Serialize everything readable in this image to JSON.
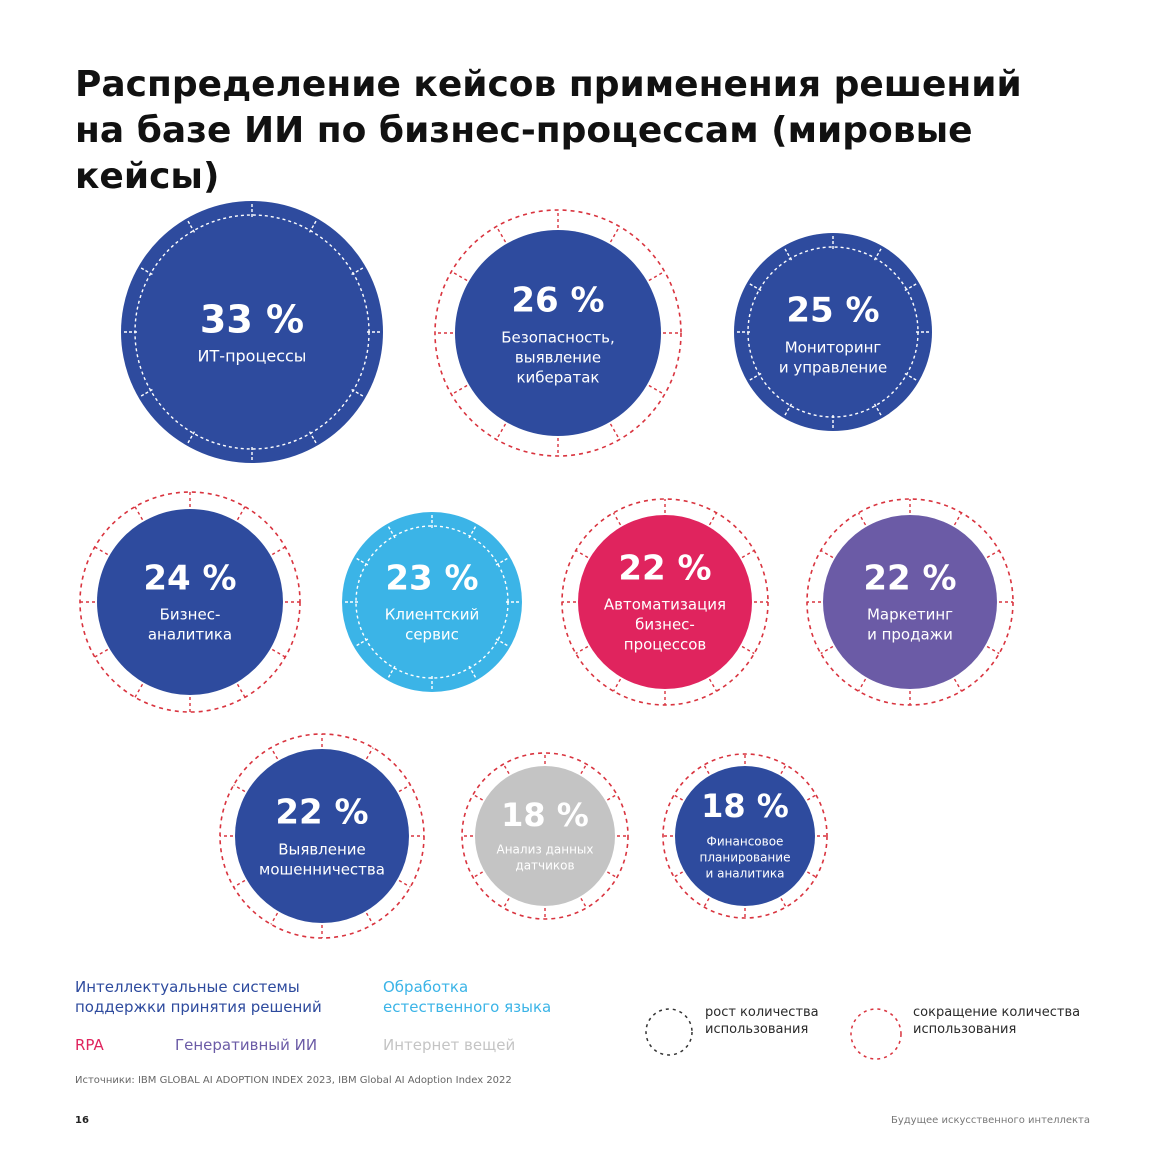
{
  "title_lines": [
    "Распределение кейсов применения решений",
    "на базе ИИ по бизнес-процессам (мировые кейсы)"
  ],
  "colors": {
    "decision_support": "#2e4b9e",
    "nlp": "#3bb4e7",
    "rpa": "#e0245e",
    "generative": "#6b5ba6",
    "iot": "#c4c4c4",
    "decrease_ring": "#d9343f"
  },
  "chart_data": {
    "type": "bubble",
    "unit": "%",
    "categories": [
      {
        "label": [
          "ИТ-процессы"
        ],
        "value": 33,
        "group": "decision_support",
        "trend": "growth"
      },
      {
        "label": [
          "Безопасность,",
          "выявление",
          "кибератак"
        ],
        "value": 26,
        "group": "decision_support",
        "trend": "decrease"
      },
      {
        "label": [
          "Мониторинг",
          "и управление"
        ],
        "value": 25,
        "group": "decision_support",
        "trend": "growth"
      },
      {
        "label": [
          "Бизнес-",
          "аналитика"
        ],
        "value": 24,
        "group": "decision_support",
        "trend": "decrease"
      },
      {
        "label": [
          "Клиентский",
          "сервис"
        ],
        "value": 23,
        "group": "nlp",
        "trend": "growth"
      },
      {
        "label": [
          "Автоматизация",
          "бизнес-",
          "процессов"
        ],
        "value": 22,
        "group": "rpa",
        "trend": "decrease"
      },
      {
        "label": [
          "Маркетинг",
          "и продажи"
        ],
        "value": 22,
        "group": "generative",
        "trend": "decrease"
      },
      {
        "label": [
          "Выявление",
          "мошенничества"
        ],
        "value": 22,
        "group": "decision_support",
        "trend": "decrease"
      },
      {
        "label": [
          "Анализ данных",
          "датчиков"
        ],
        "value": 18,
        "group": "iot",
        "trend": "decrease"
      },
      {
        "label": [
          "Финансовое",
          "планирование",
          "и аналитика"
        ],
        "value": 18,
        "group": "decision_support",
        "trend": "decrease"
      }
    ],
    "legend": {
      "groups": [
        {
          "key": "decision_support",
          "lines": [
            "Интеллектуальные системы",
            "поддержки принятия решений"
          ]
        },
        {
          "key": "nlp",
          "lines": [
            "Обработка",
            "естественного языка"
          ]
        },
        {
          "key": "rpa",
          "lines": [
            "RPA"
          ]
        },
        {
          "key": "generative",
          "lines": [
            "Генеративный ИИ"
          ]
        },
        {
          "key": "iot",
          "lines": [
            "Интернет вещей"
          ]
        }
      ],
      "trends": [
        {
          "key": "growth",
          "lines": [
            "рост количества",
            "использования"
          ]
        },
        {
          "key": "decrease",
          "lines": [
            "сокращение количества",
            "использования"
          ]
        }
      ]
    }
  },
  "source": "Источники: IBM GLOBAL AI ADOPTION INDEX 2023, IBM Global AI Adoption Index 2022",
  "page_number": "16",
  "footer_title": "Будущее искусственного интеллекта"
}
